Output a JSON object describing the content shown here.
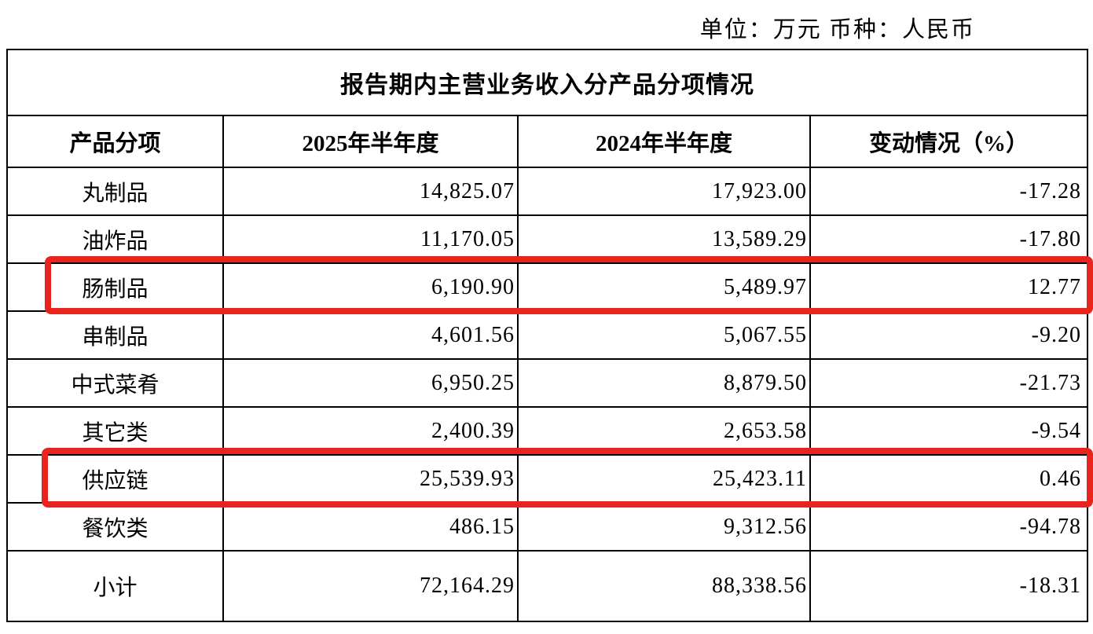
{
  "note": {
    "text": "单位：万元 币种：人民币"
  },
  "table": {
    "title": "报告期内主营业务收入分产品分项情况",
    "columns": [
      "产品分项",
      "2025年半年度",
      "2024年半年度",
      "变动情况（%）"
    ],
    "rows": [
      {
        "name": "丸制品",
        "h2025": "14,825.07",
        "h2024": "17,923.00",
        "change": "-17.28",
        "highlighted": false
      },
      {
        "name": "油炸品",
        "h2025": "11,170.05",
        "h2024": "13,589.29",
        "change": "-17.80",
        "highlighted": false
      },
      {
        "name": "肠制品",
        "h2025": "6,190.90",
        "h2024": "5,489.97",
        "change": "12.77",
        "highlighted": true
      },
      {
        "name": "串制品",
        "h2025": "4,601.56",
        "h2024": "5,067.55",
        "change": "-9.20",
        "highlighted": false
      },
      {
        "name": "中式菜肴",
        "h2025": "6,950.25",
        "h2024": "8,879.50",
        "change": "-21.73",
        "highlighted": false
      },
      {
        "name": "其它类",
        "h2025": "2,400.39",
        "h2024": "2,653.58",
        "change": "-9.54",
        "highlighted": false
      },
      {
        "name": "供应链",
        "h2025": "25,539.93",
        "h2024": "25,423.11",
        "change": "0.46",
        "highlighted": true
      },
      {
        "name": "餐饮类",
        "h2025": "486.15",
        "h2024": "9,312.56",
        "change": "-94.78",
        "highlighted": false
      },
      {
        "name": "小计",
        "h2025": "72,164.29",
        "h2024": "88,338.56",
        "change": "-18.31",
        "highlighted": false
      }
    ]
  },
  "annotations": {
    "highlight_color": "#e8241d",
    "highlighted_rows": [
      "肠制品",
      "供应链"
    ]
  }
}
